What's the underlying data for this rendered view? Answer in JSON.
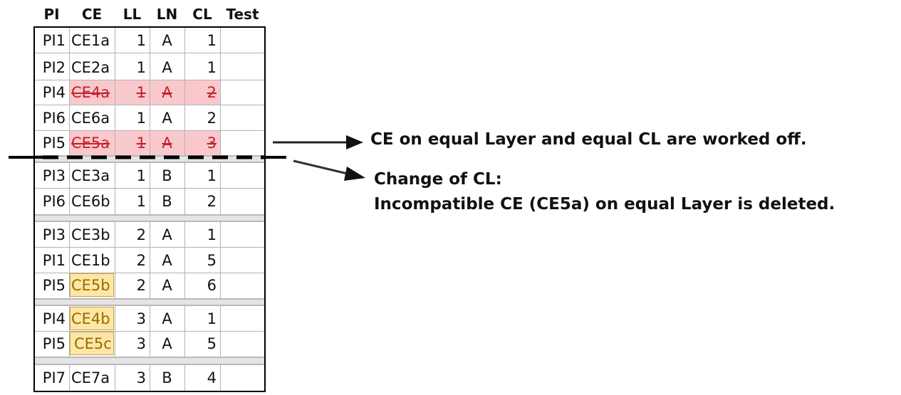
{
  "columns": [
    "PI",
    "CE",
    "LL",
    "LN",
    "CL",
    "Test"
  ],
  "rows": [
    {
      "pi": "PI1",
      "ce": "CE1a",
      "ll": "1",
      "ln": "A",
      "cl": "1",
      "test": "",
      "state": "normal"
    },
    {
      "pi": "PI2",
      "ce": "CE2a",
      "ll": "1",
      "ln": "A",
      "cl": "1",
      "test": "",
      "state": "normal"
    },
    {
      "pi": "PI4",
      "ce": "CE4a",
      "ll": "1",
      "ln": "A",
      "cl": "2",
      "test": "",
      "state": "deleted"
    },
    {
      "pi": "PI6",
      "ce": "CE6a",
      "ll": "1",
      "ln": "A",
      "cl": "2",
      "test": "",
      "state": "normal"
    },
    {
      "pi": "PI5",
      "ce": "CE5a",
      "ll": "1",
      "ln": "A",
      "cl": "3",
      "test": "",
      "state": "deleted"
    },
    {
      "pi": "PI3",
      "ce": "CE3a",
      "ll": "1",
      "ln": "B",
      "cl": "1",
      "test": "",
      "state": "normal"
    },
    {
      "pi": "PI6",
      "ce": "CE6b",
      "ll": "1",
      "ln": "B",
      "cl": "2",
      "test": "",
      "state": "normal"
    },
    {
      "pi": "PI3",
      "ce": "CE3b",
      "ll": "2",
      "ln": "A",
      "cl": "1",
      "test": "",
      "state": "normal"
    },
    {
      "pi": "PI1",
      "ce": "CE1b",
      "ll": "2",
      "ln": "A",
      "cl": "5",
      "test": "",
      "state": "normal"
    },
    {
      "pi": "PI5",
      "ce": "CE5b",
      "ll": "2",
      "ln": "A",
      "cl": "6",
      "test": "",
      "state": "highlight"
    },
    {
      "pi": "PI4",
      "ce": "CE4b",
      "ll": "3",
      "ln": "A",
      "cl": "1",
      "test": "",
      "state": "highlight"
    },
    {
      "pi": "PI5",
      "ce": "CE5c",
      "ll": "3",
      "ln": "A",
      "cl": "5",
      "test": "",
      "state": "highlight"
    },
    {
      "pi": "PI7",
      "ce": "CE7a",
      "ll": "3",
      "ln": "B",
      "cl": "4",
      "test": "",
      "state": "normal"
    }
  ],
  "annotations": {
    "note1": "CE on equal Layer and equal CL are worked off.",
    "note2_line1": "Change of CL:",
    "note2_line2": "Incompatible CE (CE5a) on equal Layer is deleted."
  },
  "colors": {
    "deleted_fill": "#f9c8cc",
    "deleted_text": "#c0202a",
    "highlight_fill": "#fde7a6",
    "highlight_border": "#c9a24a",
    "highlight_text": "#9a6a00"
  }
}
